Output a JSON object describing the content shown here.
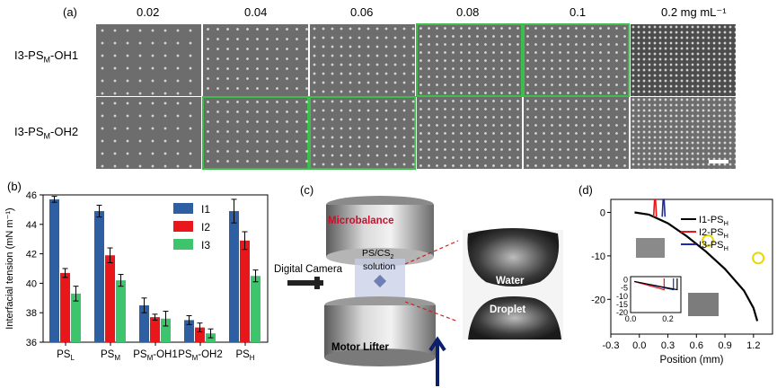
{
  "panel_a": {
    "label": "(a)",
    "concentrations": [
      "0.02",
      "0.04",
      "0.06",
      "0.08",
      "0.1",
      "0.2 mg mL⁻¹"
    ],
    "rows": [
      {
        "label_main": "I3-PS",
        "label_sub": "M",
        "label_suffix": "-OH1",
        "highlighted": [
          false,
          false,
          false,
          true,
          true,
          false
        ]
      },
      {
        "label_main": "I3-PS",
        "label_sub": "M",
        "label_suffix": "-OH2",
        "highlighted": [
          false,
          true,
          true,
          false,
          false,
          false
        ]
      }
    ]
  },
  "panel_b": {
    "label": "(b)",
    "chart_data": {
      "type": "bar",
      "ylabel": "Interfacial tension (mN m⁻¹)",
      "ylim": [
        36,
        46
      ],
      "yticks": [
        "36",
        "38",
        "40",
        "42",
        "44",
        "46"
      ],
      "categories": [
        {
          "main": "PS",
          "sub": "L",
          "suffix": ""
        },
        {
          "main": "PS",
          "sub": "M",
          "suffix": ""
        },
        {
          "main": "PS",
          "sub": "M",
          "suffix": "-OH1"
        },
        {
          "main": "PS",
          "sub": "M",
          "suffix": "-OH2"
        },
        {
          "main": "PS",
          "sub": "H",
          "suffix": ""
        }
      ],
      "series": [
        {
          "name": "I1",
          "color": "#2e5fa3",
          "values": [
            45.7,
            44.9,
            38.5,
            37.5,
            44.9
          ],
          "errors": [
            0.2,
            0.4,
            0.5,
            0.3,
            0.8
          ]
        },
        {
          "name": "I2",
          "color": "#e8171b",
          "values": [
            40.7,
            41.9,
            37.7,
            37.0,
            42.9
          ],
          "errors": [
            0.3,
            0.5,
            0.2,
            0.3,
            0.6
          ]
        },
        {
          "name": "I3",
          "color": "#3fc46e",
          "values": [
            39.3,
            40.2,
            37.6,
            36.6,
            40.5
          ],
          "errors": [
            0.5,
            0.4,
            0.5,
            0.3,
            0.4
          ]
        }
      ],
      "legend_position": "top-right"
    }
  },
  "panel_c": {
    "label": "(c)",
    "microbalance": "Microbalance",
    "solution_line1": "PS/CS",
    "solution_sub": "2",
    "solution_line2": "solution",
    "camera": "Digital Camera",
    "motor": "Motor Lifter",
    "water": "Water",
    "droplet": "Droplet"
  },
  "panel_d": {
    "label": "(d)",
    "chart_data": {
      "type": "line",
      "xlabel": "Position (mm)",
      "xlim": [
        -0.3,
        1.4
      ],
      "ylim": [
        -28,
        3
      ],
      "xticks": [
        "-0.3",
        "0.0",
        "0.3",
        "0.6",
        "0.9",
        "1.2"
      ],
      "yticks": [
        "0",
        "-10",
        "-20"
      ],
      "series": [
        {
          "name_main": "I1-PS",
          "name_sub": "H",
          "color": "#000000",
          "x": [
            -0.05,
            0.1,
            0.3,
            0.5,
            0.7,
            0.9,
            1.1,
            1.2,
            1.24
          ],
          "y": [
            0,
            -0.5,
            -2.5,
            -5.5,
            -9,
            -13,
            -18,
            -22,
            -25
          ]
        },
        {
          "name_main": "I2-PS",
          "name_sub": "H",
          "color": "#e8171b",
          "x": [
            0.15,
            0.16,
            0.17,
            0.18
          ],
          "y": [
            -1,
            3,
            3,
            -1
          ]
        },
        {
          "name_main": "I3-PS",
          "name_sub": "H",
          "color": "#1f2aa8",
          "x": [
            0.24,
            0.25,
            0.26,
            0.27
          ],
          "y": [
            -1,
            3,
            3,
            -1
          ]
        }
      ],
      "inset": {
        "xlim": [
          0,
          0.27
        ],
        "ylim": [
          -20,
          2
        ],
        "xticks": [
          "0.0",
          "0.2"
        ],
        "yticks": [
          "0",
          "-5",
          "-10",
          "-15",
          "-20"
        ]
      },
      "legend_position": "top-right"
    }
  }
}
